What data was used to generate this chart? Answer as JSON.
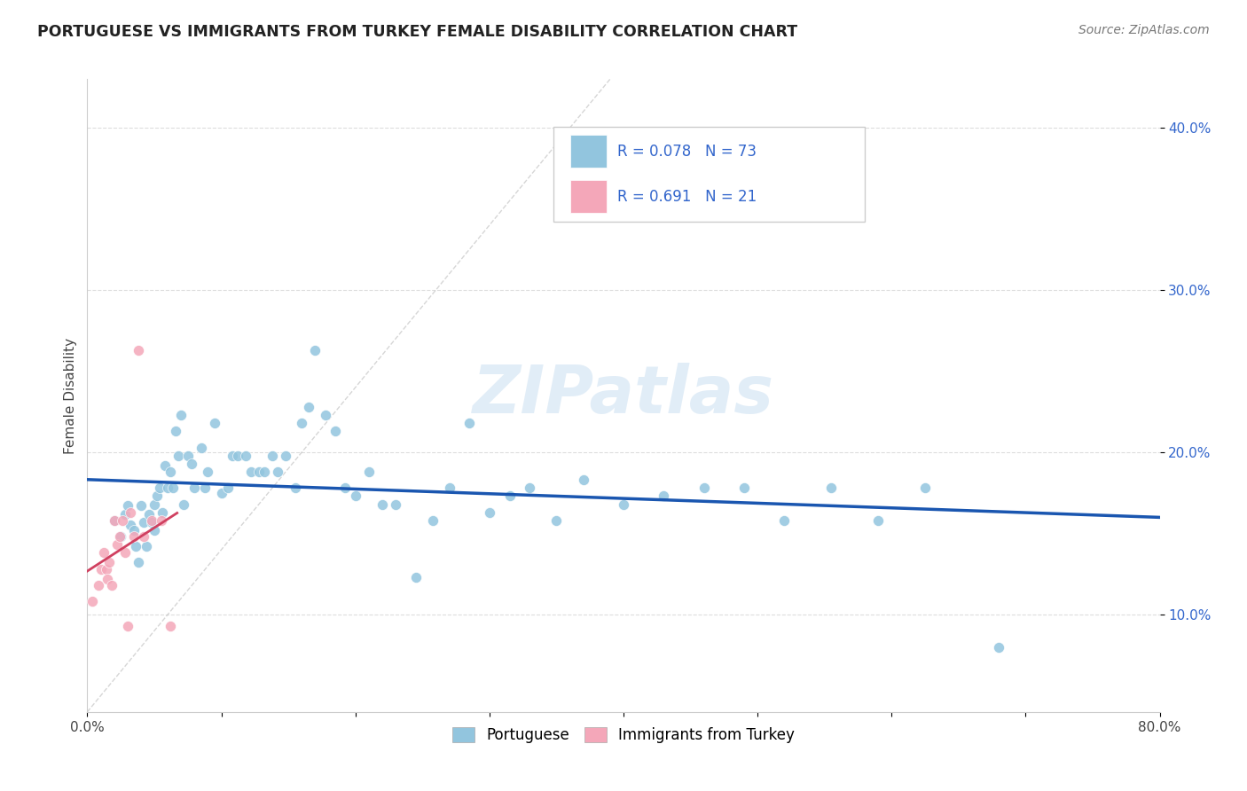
{
  "title": "PORTUGUESE VS IMMIGRANTS FROM TURKEY FEMALE DISABILITY CORRELATION CHART",
  "source": "Source: ZipAtlas.com",
  "ylabel": "Female Disability",
  "x_min": 0.0,
  "x_max": 0.8,
  "y_min": 0.04,
  "y_max": 0.43,
  "y_ticks": [
    0.1,
    0.2,
    0.3,
    0.4
  ],
  "y_tick_labels": [
    "10.0%",
    "20.0%",
    "30.0%",
    "40.0%"
  ],
  "x_ticks": [
    0.0,
    0.1,
    0.2,
    0.3,
    0.4,
    0.5,
    0.6,
    0.7,
    0.8
  ],
  "x_tick_labels": [
    "0.0%",
    "",
    "",
    "",
    "",
    "",
    "",
    "",
    "80.0%"
  ],
  "legend_label1": "Portuguese",
  "legend_label2": "Immigrants from Turkey",
  "R1": "0.078",
  "N1": "73",
  "R2": "0.691",
  "N2": "21",
  "color_blue": "#92C5DE",
  "color_pink": "#F4A7B9",
  "color_blue_text": "#3366CC",
  "color_line_blue": "#1A56B0",
  "color_line_pink": "#D04060",
  "color_diag": "#BBBBBB",
  "watermark": "ZIPatlas",
  "blue_x": [
    0.02,
    0.025,
    0.028,
    0.03,
    0.032,
    0.035,
    0.036,
    0.038,
    0.04,
    0.042,
    0.044,
    0.046,
    0.048,
    0.05,
    0.05,
    0.052,
    0.054,
    0.056,
    0.058,
    0.06,
    0.062,
    0.064,
    0.066,
    0.068,
    0.07,
    0.072,
    0.075,
    0.078,
    0.08,
    0.085,
    0.088,
    0.09,
    0.095,
    0.1,
    0.105,
    0.108,
    0.112,
    0.118,
    0.122,
    0.128,
    0.132,
    0.138,
    0.142,
    0.148,
    0.155,
    0.16,
    0.165,
    0.17,
    0.178,
    0.185,
    0.192,
    0.2,
    0.21,
    0.22,
    0.23,
    0.245,
    0.258,
    0.27,
    0.285,
    0.3,
    0.315,
    0.33,
    0.35,
    0.37,
    0.4,
    0.43,
    0.46,
    0.49,
    0.52,
    0.555,
    0.59,
    0.625,
    0.68
  ],
  "blue_y": [
    0.158,
    0.148,
    0.162,
    0.167,
    0.155,
    0.152,
    0.142,
    0.132,
    0.167,
    0.157,
    0.142,
    0.162,
    0.157,
    0.152,
    0.168,
    0.173,
    0.178,
    0.163,
    0.192,
    0.178,
    0.188,
    0.178,
    0.213,
    0.198,
    0.223,
    0.168,
    0.198,
    0.193,
    0.178,
    0.203,
    0.178,
    0.188,
    0.218,
    0.175,
    0.178,
    0.198,
    0.198,
    0.198,
    0.188,
    0.188,
    0.188,
    0.198,
    0.188,
    0.198,
    0.178,
    0.218,
    0.228,
    0.263,
    0.223,
    0.213,
    0.178,
    0.173,
    0.188,
    0.168,
    0.168,
    0.123,
    0.158,
    0.178,
    0.218,
    0.163,
    0.173,
    0.178,
    0.158,
    0.183,
    0.168,
    0.173,
    0.178,
    0.178,
    0.158,
    0.178,
    0.158,
    0.178,
    0.08
  ],
  "pink_x": [
    0.004,
    0.008,
    0.01,
    0.012,
    0.014,
    0.015,
    0.016,
    0.018,
    0.02,
    0.022,
    0.024,
    0.026,
    0.028,
    0.03,
    0.032,
    0.035,
    0.038,
    0.042,
    0.048,
    0.055,
    0.062
  ],
  "pink_y": [
    0.108,
    0.118,
    0.128,
    0.138,
    0.128,
    0.122,
    0.132,
    0.118,
    0.158,
    0.143,
    0.148,
    0.158,
    0.138,
    0.093,
    0.163,
    0.148,
    0.263,
    0.148,
    0.158,
    0.158,
    0.093
  ],
  "bg_color": "#FFFFFF",
  "grid_color": "#DDDDDD"
}
